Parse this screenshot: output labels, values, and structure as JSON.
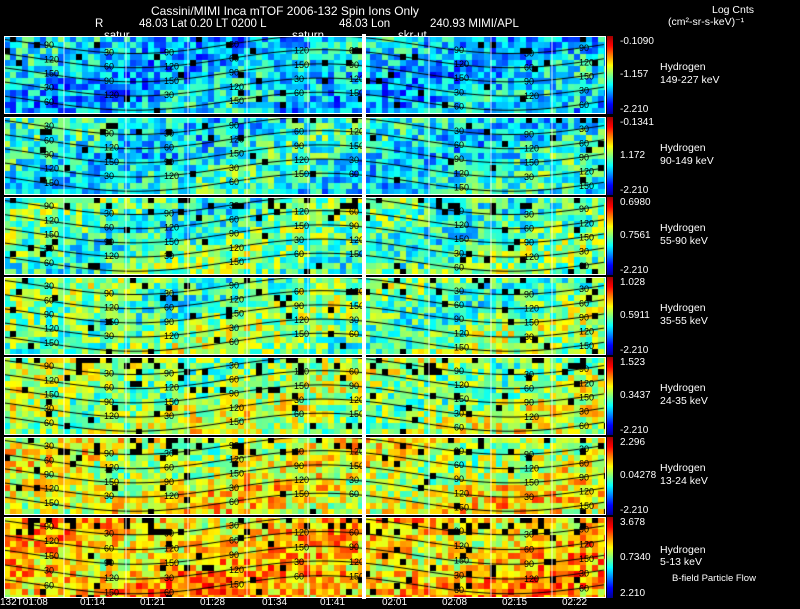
{
  "header": {
    "title": "Cassini/MIMI Inca mTOF  2006-132   Spin    Ions Only",
    "line2": [
      "R",
      "48.03 Lat 0.20 LT 0200 L",
      "48.03 Lon",
      "240.93  MIMI/APL"
    ],
    "line3": [
      "satur",
      "saturn",
      "skr-ut"
    ],
    "unit_line1": "Log Cnts",
    "unit_line2": "(cm²-sr-s-keV)⁻¹"
  },
  "chart_data": {
    "type": "heatmap",
    "title": "Cassini/MIMI Inca mTOF  2006-132   Spin    Ions Only",
    "time_ticks": [
      "132T01:08",
      "01:14",
      "01:21",
      "01:28",
      "01:34",
      "01:41",
      "02:01",
      "02:08",
      "02:15",
      "02:22"
    ],
    "contour_labels": [
      "30",
      "60",
      "90",
      "120",
      "150"
    ],
    "panels": [
      {
        "species": "Hydrogen",
        "energy": "149-227 keV",
        "cmax": "-0.1090",
        "cmid": "-1.157",
        "cmin": "-2.210"
      },
      {
        "species": "Hydrogen",
        "energy": "90-149 keV",
        "cmax": "-0.1341",
        "cmid": "1.172",
        "cmin": "-2.210"
      },
      {
        "species": "Hydrogen",
        "energy": "55-90 keV",
        "cmax": "0.6980",
        "cmid": "0.7561",
        "cmin": "-2.210"
      },
      {
        "species": "Hydrogen",
        "energy": "35-55 keV",
        "cmax": "1.028",
        "cmid": "0.5911",
        "cmin": "-2.210"
      },
      {
        "species": "Hydrogen",
        "energy": "24-35 keV",
        "cmax": "1.523",
        "cmid": "0.3437",
        "cmin": "-2.210"
      },
      {
        "species": "Hydrogen",
        "energy": "13-24 keV",
        "cmax": "2.296",
        "cmid": "0.04278",
        "cmin": "-2.210"
      },
      {
        "species": "Hydrogen",
        "energy": "5-13 keV",
        "cmax": "3.678",
        "cmid": "0.7340",
        "cmin": "2.210"
      }
    ],
    "grid": true
  },
  "footer": {
    "flow_label": "B-field Particle Flow"
  }
}
